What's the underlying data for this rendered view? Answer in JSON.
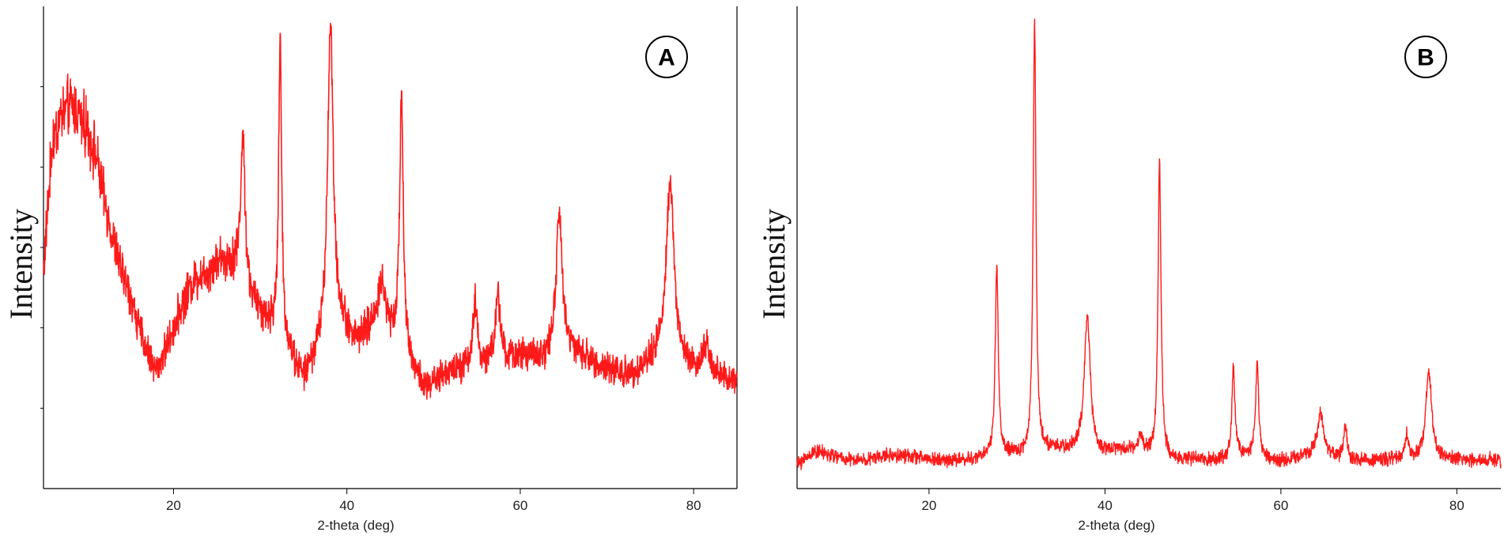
{
  "colors": {
    "trace": "#ff1a1a",
    "axis": "#000000"
  },
  "chart_data": [
    {
      "type": "line",
      "panel_label": "A",
      "xlabel": "2-theta (deg)",
      "ylabel": "Intensity",
      "title": "",
      "xlim": [
        5,
        85
      ],
      "ylim": [
        0,
        1
      ],
      "xticks": [
        20,
        40,
        60,
        80
      ],
      "xtick_labels": [
        "20",
        "40",
        "60",
        "80"
      ],
      "y_tick_labels_shown": false,
      "grid": false,
      "legend": "none",
      "noise_amplitude": 0.045,
      "series": [
        {
          "name": "",
          "description_points": {
            "x": [
              5,
              6,
              7,
              8,
              9,
              10,
              11,
              12,
              13,
              14,
              15,
              16,
              17,
              18,
              19,
              20,
              21,
              22,
              23,
              24,
              25,
              26,
              27,
              28,
              29,
              30,
              31,
              32,
              33,
              34,
              35,
              36,
              37,
              38,
              39,
              40,
              41,
              42,
              43,
              44,
              45,
              46,
              47,
              48,
              49,
              50,
              52,
              54,
              56,
              58,
              60,
              62,
              64,
              66,
              68,
              70,
              72,
              74,
              76,
              78,
              80,
              82,
              84,
              85
            ],
            "y": [
              0.45,
              0.72,
              0.78,
              0.8,
              0.79,
              0.75,
              0.7,
              0.6,
              0.52,
              0.45,
              0.4,
              0.33,
              0.28,
              0.24,
              0.28,
              0.33,
              0.38,
              0.42,
              0.44,
              0.45,
              0.47,
              0.47,
              0.46,
              0.42,
              0.38,
              0.36,
              0.34,
              0.32,
              0.29,
              0.25,
              0.22,
              0.25,
              0.29,
              0.33,
              0.34,
              0.32,
              0.3,
              0.31,
              0.33,
              0.34,
              0.32,
              0.3,
              0.27,
              0.23,
              0.2,
              0.21,
              0.24,
              0.25,
              0.25,
              0.26,
              0.27,
              0.26,
              0.26,
              0.27,
              0.26,
              0.24,
              0.23,
              0.24,
              0.27,
              0.25,
              0.24,
              0.23,
              0.22,
              0.22
            ]
          },
          "peaks": [
            {
              "x": 28.0,
              "height": 0.32,
              "width": 0.45
            },
            {
              "x": 32.3,
              "height": 0.63,
              "width": 0.3
            },
            {
              "x": 38.1,
              "height": 0.65,
              "width": 0.55
            },
            {
              "x": 44.0,
              "height": 0.08,
              "width": 0.8
            },
            {
              "x": 46.3,
              "height": 0.55,
              "width": 0.35
            },
            {
              "x": 54.8,
              "height": 0.13,
              "width": 0.45
            },
            {
              "x": 57.4,
              "height": 0.15,
              "width": 0.45
            },
            {
              "x": 64.5,
              "height": 0.3,
              "width": 0.7
            },
            {
              "x": 77.3,
              "height": 0.38,
              "width": 0.8
            },
            {
              "x": 81.5,
              "height": 0.06,
              "width": 0.6
            }
          ]
        }
      ]
    },
    {
      "type": "line",
      "panel_label": "B",
      "xlabel": "2-theta (deg)",
      "ylabel": "Intensity",
      "title": "",
      "xlim": [
        5,
        85
      ],
      "ylim": [
        0,
        1
      ],
      "xticks": [
        20,
        40,
        60,
        80
      ],
      "xtick_labels": [
        "20",
        "40",
        "60",
        "80"
      ],
      "y_tick_labels_shown": false,
      "grid": false,
      "legend": "none",
      "noise_amplitude": 0.018,
      "series": [
        {
          "name": "",
          "description_points": {
            "x": [
              5,
              7,
              9,
              11,
              13,
              15,
              17,
              19,
              21,
              23,
              25,
              27,
              29,
              31,
              33,
              35,
              37,
              39,
              41,
              43,
              45,
              47,
              49,
              51,
              53,
              55,
              57,
              59,
              61,
              63,
              65,
              67,
              69,
              71,
              73,
              75,
              77,
              79,
              81,
              83,
              85
            ],
            "y": [
              0.04,
              0.07,
              0.06,
              0.05,
              0.05,
              0.06,
              0.06,
              0.055,
              0.05,
              0.05,
              0.05,
              0.06,
              0.06,
              0.06,
              0.07,
              0.07,
              0.07,
              0.06,
              0.07,
              0.07,
              0.06,
              0.05,
              0.05,
              0.05,
              0.05,
              0.06,
              0.06,
              0.05,
              0.05,
              0.06,
              0.06,
              0.05,
              0.05,
              0.05,
              0.05,
              0.05,
              0.05,
              0.05,
              0.05,
              0.05,
              0.05
            ]
          },
          "peaks": [
            {
              "x": 27.7,
              "height": 0.4,
              "width": 0.3
            },
            {
              "x": 32.0,
              "height": 0.92,
              "width": 0.28
            },
            {
              "x": 38.0,
              "height": 0.29,
              "width": 0.6
            },
            {
              "x": 44.0,
              "height": 0.03,
              "width": 0.6
            },
            {
              "x": 46.2,
              "height": 0.63,
              "width": 0.3
            },
            {
              "x": 54.6,
              "height": 0.19,
              "width": 0.3
            },
            {
              "x": 57.3,
              "height": 0.2,
              "width": 0.3
            },
            {
              "x": 64.5,
              "height": 0.09,
              "width": 0.6
            },
            {
              "x": 67.3,
              "height": 0.07,
              "width": 0.35
            },
            {
              "x": 74.3,
              "height": 0.05,
              "width": 0.35
            },
            {
              "x": 76.8,
              "height": 0.19,
              "width": 0.6
            }
          ]
        }
      ]
    }
  ]
}
